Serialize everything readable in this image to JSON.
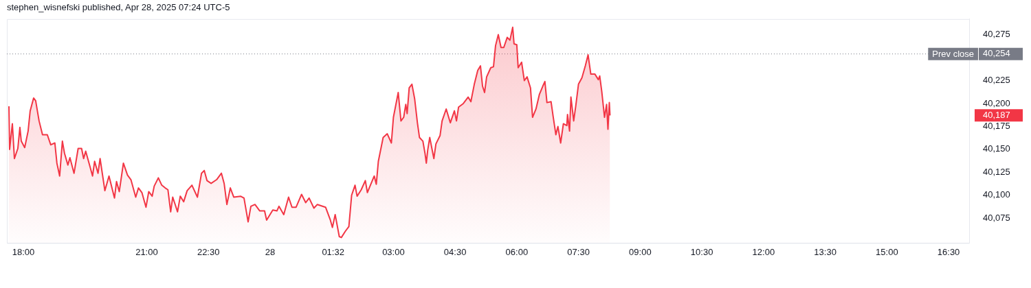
{
  "chart_data": {
    "type": "area",
    "title": "stephen_wisnefski published, Apr 28, 2025 07:24 UTC-5",
    "xlim": [
      "2025-04-27T17:36",
      "2025-04-28T17:00"
    ],
    "xticks": [
      {
        "value": "2025-04-27T18:00",
        "label": "18:00"
      },
      {
        "value": "2025-04-27T21:00",
        "label": "21:00"
      },
      {
        "value": "2025-04-27T22:30",
        "label": "22:30"
      },
      {
        "value": "2025-04-28T00:00",
        "label": "28"
      },
      {
        "value": "2025-04-28T01:32",
        "label": "01:32"
      },
      {
        "value": "2025-04-28T03:00",
        "label": "03:00"
      },
      {
        "value": "2025-04-28T04:30",
        "label": "04:30"
      },
      {
        "value": "2025-04-28T06:00",
        "label": "06:00"
      },
      {
        "value": "2025-04-28T07:30",
        "label": "07:30"
      },
      {
        "value": "2025-04-28T09:00",
        "label": "09:00"
      },
      {
        "value": "2025-04-28T10:30",
        "label": "10:30"
      },
      {
        "value": "2025-04-28T12:00",
        "label": "12:00"
      },
      {
        "value": "2025-04-28T13:30",
        "label": "13:30"
      },
      {
        "value": "2025-04-28T15:00",
        "label": "15:00"
      },
      {
        "value": "2025-04-28T16:30",
        "label": "16:30"
      }
    ],
    "ylim": [
      40048,
      40292
    ],
    "yticks": [
      {
        "value": 40075,
        "label": "40,075"
      },
      {
        "value": 40100,
        "label": "40,100"
      },
      {
        "value": 40125,
        "label": "40,125"
      },
      {
        "value": 40150,
        "label": "40,150"
      },
      {
        "value": 40175,
        "label": "40,175"
      },
      {
        "value": 40187,
        "label": "40,187"
      },
      {
        "value": 40200,
        "label": "40,200"
      },
      {
        "value": 40225,
        "label": "40,225"
      },
      {
        "value": 40254,
        "label": "40,254"
      },
      {
        "value": 40275,
        "label": "40,275"
      }
    ],
    "ref_lines": [
      {
        "axis": "y",
        "value": 40254,
        "label": "Prev close",
        "color": "#787b86",
        "line_style": "dotted"
      }
    ],
    "series": [
      {
        "color": "#f23645",
        "x": [
          "2025-04-27T17:39",
          "2025-04-27T17:40",
          "2025-04-27T17:44",
          "2025-04-27T17:47",
          "2025-04-27T17:52",
          "2025-04-27T17:55",
          "2025-04-27T17:57",
          "2025-04-27T18:02",
          "2025-04-27T18:07",
          "2025-04-27T18:10",
          "2025-04-27T18:15",
          "2025-04-27T18:18",
          "2025-04-27T18:23",
          "2025-04-27T18:28",
          "2025-04-27T18:35",
          "2025-04-27T18:40",
          "2025-04-27T18:46",
          "2025-04-27T18:49",
          "2025-04-27T18:53",
          "2025-04-27T18:57",
          "2025-04-27T19:00",
          "2025-04-27T19:05",
          "2025-04-27T19:08",
          "2025-04-27T19:14",
          "2025-04-27T19:20",
          "2025-04-27T19:25",
          "2025-04-27T19:28",
          "2025-04-27T19:31",
          "2025-04-27T19:37",
          "2025-04-27T19:41",
          "2025-04-27T19:44",
          "2025-04-27T19:49",
          "2025-04-27T19:52",
          "2025-04-27T19:59",
          "2025-04-27T20:05",
          "2025-04-27T20:13",
          "2025-04-27T20:16",
          "2025-04-27T20:20",
          "2025-04-27T20:26",
          "2025-04-27T20:32",
          "2025-04-27T20:37",
          "2025-04-27T20:44",
          "2025-04-27T20:48",
          "2025-04-27T20:53",
          "2025-04-27T20:59",
          "2025-04-27T21:03",
          "2025-04-27T21:08",
          "2025-04-27T21:11",
          "2025-04-27T21:17",
          "2025-04-27T21:22",
          "2025-04-27T21:27",
          "2025-04-27T21:31",
          "2025-04-27T21:35",
          "2025-04-27T21:38",
          "2025-04-27T21:45",
          "2025-04-27T21:49",
          "2025-04-27T21:54",
          "2025-04-27T21:59",
          "2025-04-27T22:06",
          "2025-04-27T22:14",
          "2025-04-27T22:20",
          "2025-04-27T22:24",
          "2025-04-27T22:28",
          "2025-04-27T22:34",
          "2025-04-27T22:42",
          "2025-04-27T22:49",
          "2025-04-27T22:53",
          "2025-04-27T22:57",
          "2025-04-27T23:02",
          "2025-04-27T23:07",
          "2025-04-27T23:17",
          "2025-04-27T23:22",
          "2025-04-27T23:28",
          "2025-04-27T23:32",
          "2025-04-27T23:38",
          "2025-04-27T23:45",
          "2025-04-27T23:52",
          "2025-04-27T23:55",
          "2025-04-28T00:04",
          "2025-04-28T00:10",
          "2025-04-28T00:13",
          "2025-04-28T00:20",
          "2025-04-28T00:27",
          "2025-04-28T00:32",
          "2025-04-28T00:38",
          "2025-04-28T00:46",
          "2025-04-28T00:52",
          "2025-04-28T00:57",
          "2025-04-28T01:04",
          "2025-04-28T01:09",
          "2025-04-28T01:21",
          "2025-04-28T01:28",
          "2025-04-28T01:31",
          "2025-04-28T01:35",
          "2025-04-28T01:41",
          "2025-04-28T01:44",
          "2025-04-28T01:50",
          "2025-04-28T01:55",
          "2025-04-28T01:59",
          "2025-04-28T02:04",
          "2025-04-28T02:07",
          "2025-04-28T02:13",
          "2025-04-28T02:19",
          "2025-04-28T02:22",
          "2025-04-28T02:27",
          "2025-04-28T02:32",
          "2025-04-28T02:35",
          "2025-04-28T02:38",
          "2025-04-28T02:45",
          "2025-04-28T02:51",
          "2025-04-28T02:57",
          "2025-04-28T03:00",
          "2025-04-28T03:07",
          "2025-04-28T03:11",
          "2025-04-28T03:15",
          "2025-04-28T03:18",
          "2025-04-28T03:20",
          "2025-04-28T03:23",
          "2025-04-28T03:27",
          "2025-04-28T03:31",
          "2025-04-28T03:35",
          "2025-04-28T03:38",
          "2025-04-28T03:43",
          "2025-04-28T03:46",
          "2025-04-28T03:48",
          "2025-04-28T03:50",
          "2025-04-28T03:53",
          "2025-04-28T03:59",
          "2025-04-28T04:02",
          "2025-04-28T04:08",
          "2025-04-28T04:11",
          "2025-04-28T04:17",
          "2025-04-28T04:23",
          "2025-04-28T04:29",
          "2025-04-28T04:32",
          "2025-04-28T04:35",
          "2025-04-28T04:42",
          "2025-04-28T04:49",
          "2025-04-28T04:53",
          "2025-04-28T04:58",
          "2025-04-28T05:03",
          "2025-04-28T05:07",
          "2025-04-28T05:10",
          "2025-04-28T05:13",
          "2025-04-28T05:16",
          "2025-04-28T05:22",
          "2025-04-28T05:26",
          "2025-04-28T05:29",
          "2025-04-28T05:33",
          "2025-04-28T05:37",
          "2025-04-28T05:41",
          "2025-04-28T05:46",
          "2025-04-28T05:50",
          "2025-04-28T05:54",
          "2025-04-28T05:56",
          "2025-04-28T06:00",
          "2025-04-28T06:02",
          "2025-04-28T06:07",
          "2025-04-28T06:11",
          "2025-04-28T06:15",
          "2025-04-28T06:20",
          "2025-04-28T06:23",
          "2025-04-28T06:28",
          "2025-04-28T06:33",
          "2025-04-28T06:38",
          "2025-04-28T06:41",
          "2025-04-28T06:44",
          "2025-04-28T06:50",
          "2025-04-28T06:53",
          "2025-04-28T06:57",
          "2025-04-28T07:00",
          "2025-04-28T07:04",
          "2025-04-28T07:08",
          "2025-04-28T07:13",
          "2025-04-28T07:14",
          "2025-04-28T07:17",
          "2025-04-28T07:19",
          "2025-04-28T07:23",
          "2025-04-28T07:26",
          "2025-04-28T07:30",
          "2025-04-28T07:35",
          "2025-04-28T07:40",
          "2025-04-28T07:44",
          "2025-04-28T07:48",
          "2025-04-28T07:54",
          "2025-04-28T07:59",
          "2025-04-28T08:01",
          "2025-04-28T08:04",
          "2025-04-28T08:08",
          "2025-04-28T08:11",
          "2025-04-28T08:13",
          "2025-04-28T08:15",
          "2025-04-28T08:16"
        ],
        "values": [
          40197,
          40150,
          40178,
          40140,
          40151,
          40174,
          40159,
          40152,
          40170,
          40192,
          40206,
          40203,
          40181,
          40166,
          40166,
          40155,
          40157,
          40135,
          40121,
          40159,
          40146,
          40133,
          40141,
          40124,
          40151,
          40151,
          40140,
          40148,
          40132,
          40121,
          40137,
          40124,
          40140,
          40105,
          40121,
          40097,
          40115,
          40104,
          40135,
          40122,
          40117,
          40098,
          40108,
          40103,
          40087,
          40104,
          40099,
          40110,
          40119,
          40111,
          40108,
          40106,
          40082,
          40098,
          40082,
          40099,
          40093,
          40105,
          40111,
          40098,
          40124,
          40127,
          40116,
          40113,
          40117,
          40124,
          40113,
          40090,
          40108,
          40098,
          40099,
          40097,
          40071,
          40088,
          40090,
          40083,
          40083,
          40073,
          40084,
          40083,
          40088,
          40079,
          40098,
          40087,
          40087,
          40101,
          40092,
          40097,
          40086,
          40090,
          40087,
          40073,
          40065,
          40079,
          40055,
          40054,
          40061,
          40066,
          40100,
          40111,
          40099,
          40106,
          40116,
          40103,
          40112,
          40121,
          40112,
          40137,
          40163,
          40167,
          40157,
          40185,
          40212,
          40181,
          40185,
          40199,
          40189,
          40217,
          40221,
          40205,
          40179,
          40163,
          40159,
          40146,
          40135,
          40149,
          40163,
          40140,
          40156,
          40165,
          40181,
          40194,
          40179,
          40192,
          40181,
          40196,
          40200,
          40207,
          40202,
          40221,
          40236,
          40241,
          40219,
          40212,
          40229,
          40239,
          40240,
          40263,
          40275,
          40261,
          40261,
          40272,
          40269,
          40283,
          40265,
          40264,
          40239,
          40245,
          40225,
          40229,
          40217,
          40185,
          40194,
          40210,
          40219,
          40224,
          40201,
          40202,
          40186,
          40166,
          40175,
          40157,
          40178,
          40176,
          40188,
          40170,
          40207,
          40181,
          40197,
          40221,
          40228,
          40241,
          40253,
          40232,
          40232,
          40226,
          40230,
          40213,
          40185,
          40199,
          40172,
          40201,
          40187
        ]
      }
    ]
  }
}
